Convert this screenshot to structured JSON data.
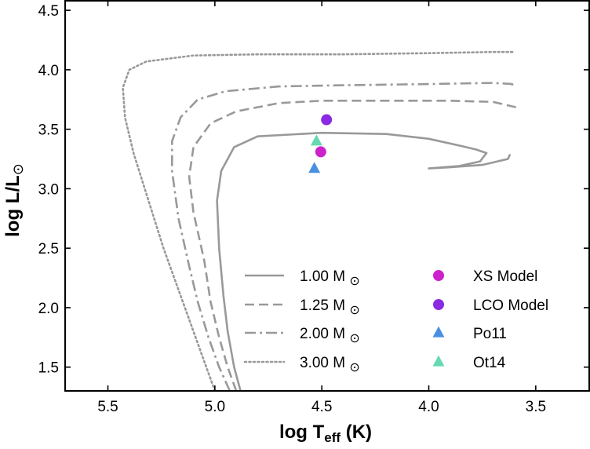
{
  "chart_data": {
    "type": "line",
    "xlabel": "log T_eff (K)",
    "ylabel": "log L/L_sun",
    "xlim": [
      5.7,
      3.25
    ],
    "ylim": [
      1.3,
      4.58
    ],
    "grid": false,
    "legend_position": "bottom-right",
    "x_ticks": [
      5.5,
      5.0,
      4.5,
      4.0,
      3.5
    ],
    "x_tick_labels": [
      "5.5",
      "5.0",
      "4.5",
      "4.0",
      "3.5"
    ],
    "y_ticks": [
      1.5,
      2.0,
      2.5,
      3.0,
      3.5,
      4.0,
      4.5
    ],
    "y_tick_labels": [
      "1.5",
      "2.0",
      "2.5",
      "3.0",
      "3.5",
      "4.0",
      "4.5"
    ],
    "x_title_main": "log T",
    "x_title_sub": "eff",
    "x_title_unit": "(K)",
    "y_title_main": "log L/L",
    "y_title_sym": "⊙",
    "series": [
      {
        "name": "1.00 M",
        "sym": "⊙",
        "style": "solid",
        "color": "#999999",
        "points": [
          [
            4.88,
            1.3
          ],
          [
            4.91,
            1.5
          ],
          [
            4.94,
            1.8
          ],
          [
            4.96,
            2.1
          ],
          [
            4.98,
            2.5
          ],
          [
            4.99,
            2.9
          ],
          [
            4.97,
            3.15
          ],
          [
            4.91,
            3.35
          ],
          [
            4.8,
            3.44
          ],
          [
            4.5,
            3.47
          ],
          [
            4.2,
            3.46
          ],
          [
            4.0,
            3.42
          ],
          [
            3.85,
            3.36
          ],
          [
            3.78,
            3.33
          ],
          [
            3.73,
            3.3
          ],
          [
            3.76,
            3.23
          ],
          [
            3.86,
            3.19
          ],
          [
            4.0,
            3.17
          ],
          [
            3.9,
            3.18
          ],
          [
            3.75,
            3.2
          ],
          [
            3.63,
            3.25
          ],
          [
            3.62,
            3.29
          ]
        ]
      },
      {
        "name": "1.25 M",
        "sym": "⊙",
        "style": "dashed",
        "color": "#999999",
        "points": [
          [
            4.9,
            1.3
          ],
          [
            4.94,
            1.5
          ],
          [
            4.98,
            1.75
          ],
          [
            5.02,
            2.05
          ],
          [
            5.05,
            2.4
          ],
          [
            5.1,
            2.8
          ],
          [
            5.12,
            3.1
          ],
          [
            5.1,
            3.35
          ],
          [
            5.02,
            3.55
          ],
          [
            4.9,
            3.65
          ],
          [
            4.7,
            3.72
          ],
          [
            4.5,
            3.74
          ],
          [
            4.2,
            3.74
          ],
          [
            3.9,
            3.74
          ],
          [
            3.7,
            3.73
          ],
          [
            3.58,
            3.68
          ]
        ]
      },
      {
        "name": "2.00 M",
        "sym": "⊙",
        "style": "dashdot",
        "color": "#999999",
        "points": [
          [
            4.93,
            1.3
          ],
          [
            4.98,
            1.5
          ],
          [
            5.03,
            1.75
          ],
          [
            5.08,
            2.05
          ],
          [
            5.12,
            2.35
          ],
          [
            5.17,
            2.75
          ],
          [
            5.2,
            3.15
          ],
          [
            5.2,
            3.4
          ],
          [
            5.16,
            3.6
          ],
          [
            5.08,
            3.75
          ],
          [
            4.95,
            3.82
          ],
          [
            4.7,
            3.86
          ],
          [
            4.4,
            3.87
          ],
          [
            4.0,
            3.88
          ],
          [
            3.7,
            3.89
          ],
          [
            3.61,
            3.88
          ],
          [
            3.6,
            3.84
          ]
        ]
      },
      {
        "name": "3.00 M",
        "sym": "⊙",
        "style": "dotted",
        "color": "#999999",
        "points": [
          [
            5.0,
            1.3
          ],
          [
            5.05,
            1.55
          ],
          [
            5.11,
            1.85
          ],
          [
            5.17,
            2.15
          ],
          [
            5.24,
            2.5
          ],
          [
            5.31,
            2.9
          ],
          [
            5.38,
            3.3
          ],
          [
            5.42,
            3.6
          ],
          [
            5.43,
            3.85
          ],
          [
            5.4,
            4.0
          ],
          [
            5.32,
            4.07
          ],
          [
            5.1,
            4.12
          ],
          [
            4.8,
            4.13
          ],
          [
            4.4,
            4.13
          ],
          [
            4.0,
            4.14
          ],
          [
            3.7,
            4.15
          ],
          [
            3.6,
            4.15
          ]
        ]
      }
    ],
    "points": [
      {
        "name": "XS Model",
        "marker": "circle",
        "color": "#cc22cc",
        "x": 4.505,
        "y": 3.31
      },
      {
        "name": "LCO Model",
        "marker": "circle",
        "color": "#8a2be2",
        "x": 4.478,
        "y": 3.58
      },
      {
        "name": "Po11",
        "marker": "triangle",
        "color": "#4a90e2",
        "x": 4.535,
        "y": 3.17
      },
      {
        "name": "Ot14",
        "marker": "triangle",
        "color": "#66d9b0",
        "x": 4.525,
        "y": 3.4
      }
    ]
  }
}
